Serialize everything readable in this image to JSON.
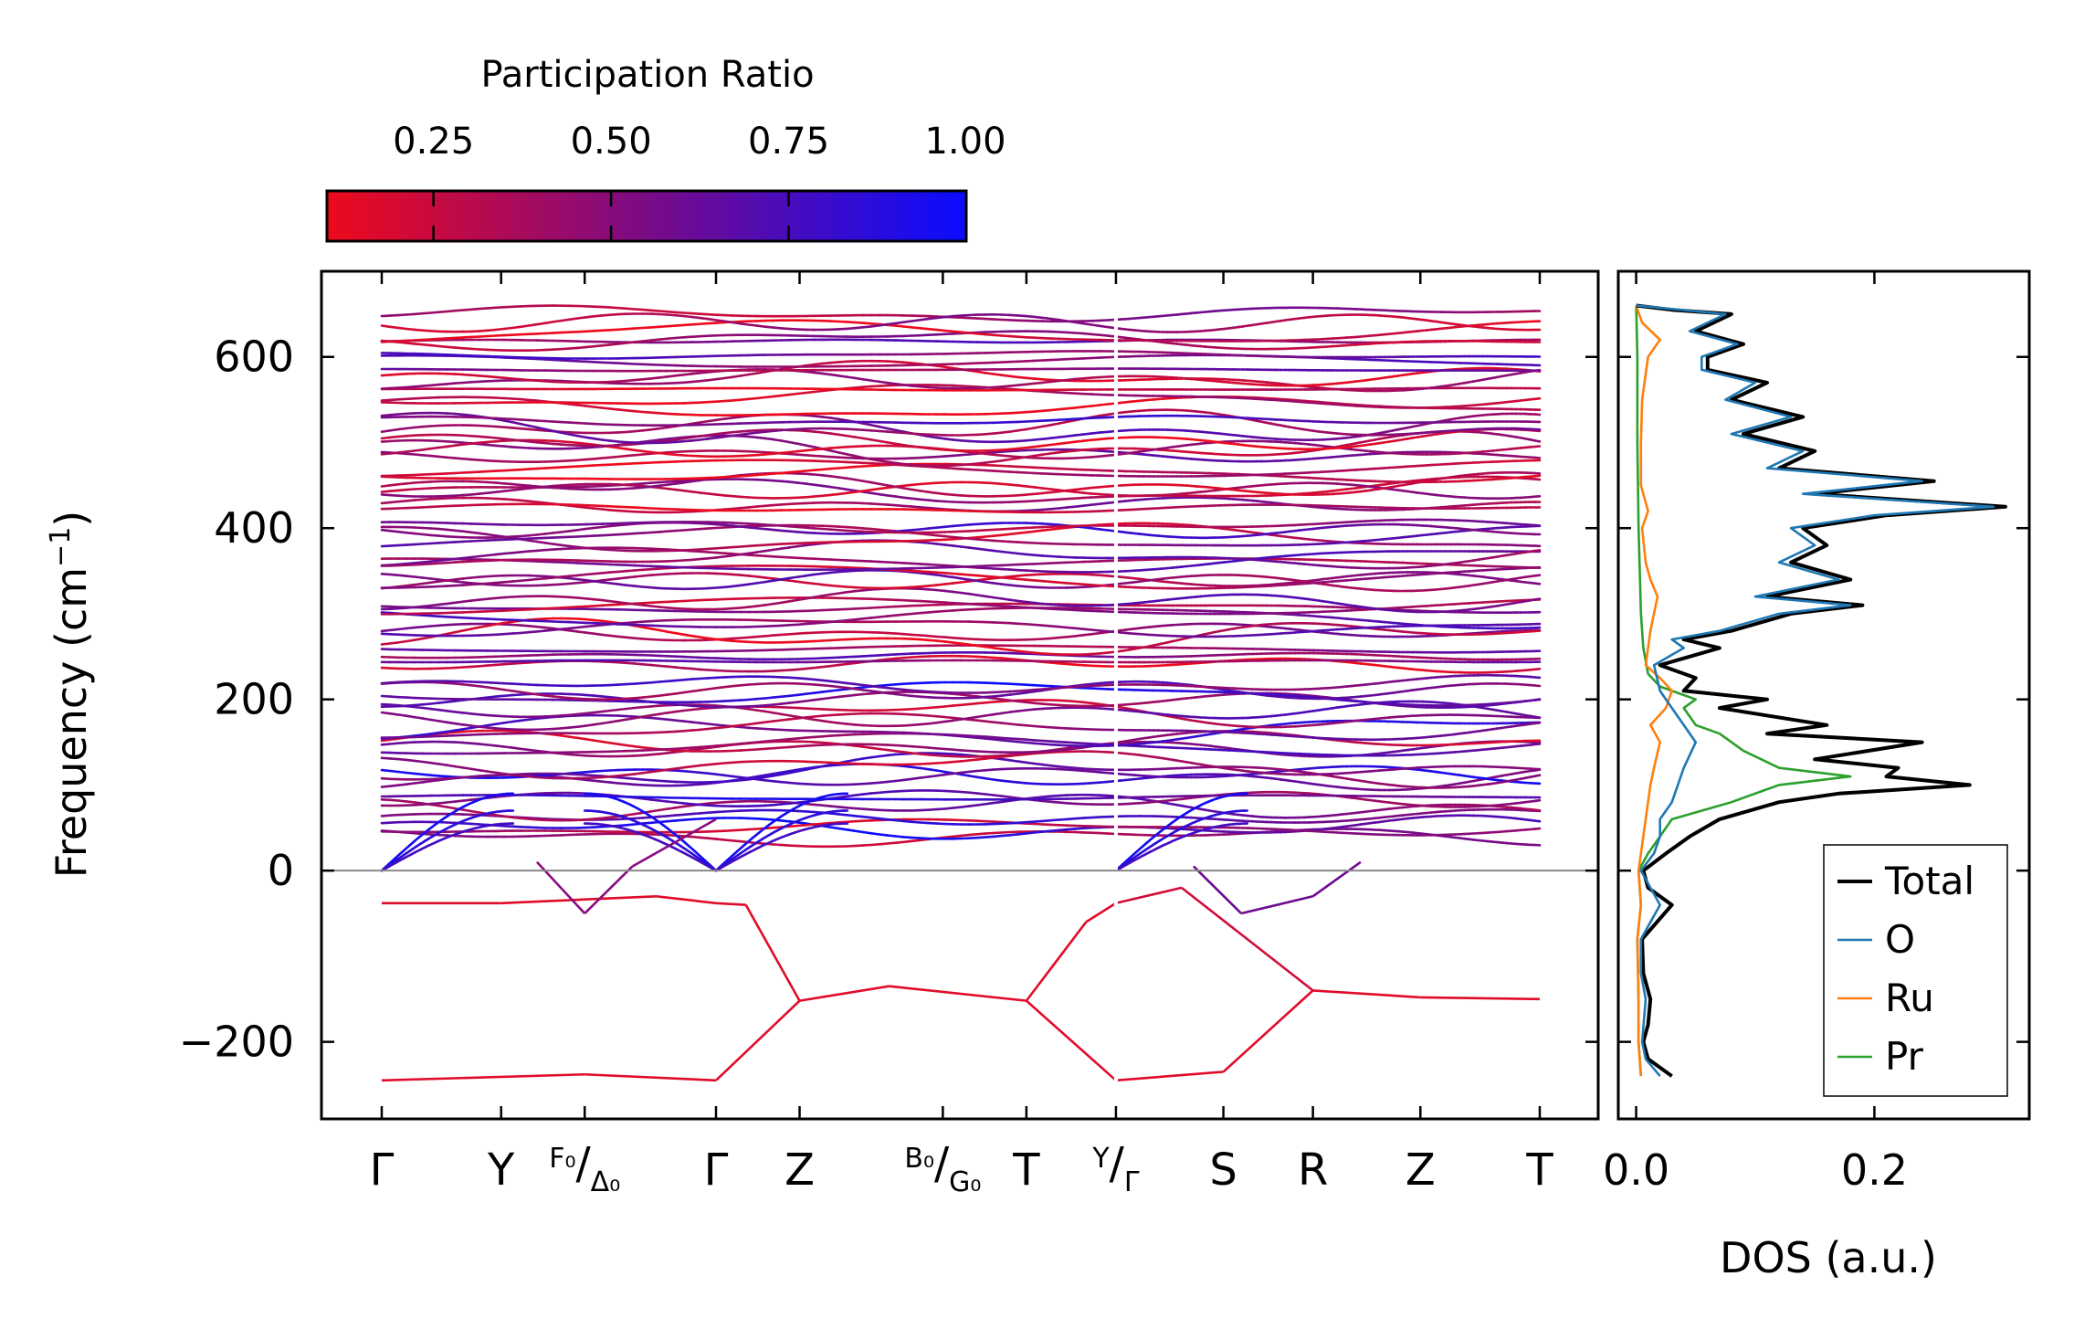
{
  "chart_data": [
    {
      "type": "line",
      "name": "phonon-band-structure",
      "xlabel": "",
      "ylabel": "Frequency (cm⁻¹)",
      "ylabel_main": "Frequency (cm",
      "ylabel_sup": "−1",
      "ylabel_close": ")",
      "ylim": [
        -290,
        700
      ],
      "yticks": [
        -200,
        0,
        200,
        400,
        600
      ],
      "ytick_labels": [
        "−200",
        "0",
        "200",
        "400",
        "600"
      ],
      "kpath": [
        {
          "pos": 0.0,
          "label": "Γ"
        },
        {
          "pos": 1.0,
          "label": "Y"
        },
        {
          "pos": 1.7,
          "label_top": "F₀",
          "label_bottom": "Δ₀"
        },
        {
          "pos": 2.8,
          "label": "Γ"
        },
        {
          "pos": 3.5,
          "label": "Z"
        },
        {
          "pos": 4.7,
          "label_top": "B₀",
          "label_bottom": "G₀"
        },
        {
          "pos": 5.4,
          "label": "T"
        },
        {
          "pos": 6.15,
          "label_top": "Y",
          "label_bottom": "Γ"
        },
        {
          "pos": 7.05,
          "label": "S"
        },
        {
          "pos": 7.8,
          "label": "R"
        },
        {
          "pos": 8.7,
          "label": "Z"
        },
        {
          "pos": 9.7,
          "label": "T"
        }
      ],
      "segment_breaks": [
        6.15
      ],
      "colorbar": {
        "title": "Participation Ratio",
        "range": [
          0.1,
          1.0
        ],
        "ticks": [
          0.25,
          0.5,
          0.75,
          1.0
        ],
        "tick_labels": [
          "0.25",
          "0.50",
          "0.75",
          "1.00"
        ],
        "color_low": "#ee0a1c",
        "color_mid": "#7a0b86",
        "color_high": "#0a0cff"
      },
      "notable_bands": [
        {
          "desc": "top optical band",
          "approx_cm-1": 650
        },
        {
          "desc": "soft mode (lowest)",
          "approx_cm-1": -245
        },
        {
          "desc": "soft mode (second)",
          "approx_cm-1": -150
        },
        {
          "desc": "acoustic branches start at Γ",
          "approx_cm-1": 0
        }
      ]
    },
    {
      "type": "line",
      "name": "density-of-states",
      "xlabel": "DOS (a.u.)",
      "xlim": [
        -0.015,
        0.33
      ],
      "xticks": [
        0.0,
        0.2
      ],
      "xtick_labels": [
        "0.0",
        "0.2"
      ],
      "ylim": [
        -290,
        700
      ],
      "legend_position": "lower-right",
      "series": [
        {
          "name": "Total",
          "color": "#000000",
          "points": [
            [
              -240,
              0.03
            ],
            [
              -220,
              0.01
            ],
            [
              -200,
              0.006
            ],
            [
              -180,
              0.01
            ],
            [
              -150,
              0.012
            ],
            [
              -120,
              0.006
            ],
            [
              -80,
              0.005
            ],
            [
              -40,
              0.03
            ],
            [
              -20,
              0.01
            ],
            [
              0,
              0.006
            ],
            [
              20,
              0.025
            ],
            [
              40,
              0.045
            ],
            [
              60,
              0.07
            ],
            [
              80,
              0.12
            ],
            [
              90,
              0.17
            ],
            [
              100,
              0.28
            ],
            [
              110,
              0.21
            ],
            [
              120,
              0.22
            ],
            [
              130,
              0.15
            ],
            [
              150,
              0.24
            ],
            [
              160,
              0.11
            ],
            [
              170,
              0.16
            ],
            [
              190,
              0.07
            ],
            [
              200,
              0.11
            ],
            [
              210,
              0.04
            ],
            [
              225,
              0.05
            ],
            [
              240,
              0.02
            ],
            [
              260,
              0.07
            ],
            [
              270,
              0.04
            ],
            [
              280,
              0.08
            ],
            [
              300,
              0.13
            ],
            [
              310,
              0.19
            ],
            [
              320,
              0.11
            ],
            [
              340,
              0.18
            ],
            [
              360,
              0.13
            ],
            [
              380,
              0.16
            ],
            [
              400,
              0.14
            ],
            [
              415,
              0.21
            ],
            [
              425,
              0.31
            ],
            [
              440,
              0.15
            ],
            [
              455,
              0.25
            ],
            [
              470,
              0.12
            ],
            [
              490,
              0.15
            ],
            [
              510,
              0.09
            ],
            [
              530,
              0.14
            ],
            [
              550,
              0.08
            ],
            [
              570,
              0.11
            ],
            [
              585,
              0.06
            ],
            [
              600,
              0.06
            ],
            [
              615,
              0.09
            ],
            [
              630,
              0.05
            ],
            [
              650,
              0.08
            ],
            [
              655,
              0.03
            ],
            [
              660,
              0.0
            ]
          ]
        },
        {
          "name": "O",
          "color": "#1f77b4",
          "points": [
            [
              -240,
              0.02
            ],
            [
              -220,
              0.008
            ],
            [
              -200,
              0.005
            ],
            [
              -150,
              0.008
            ],
            [
              -120,
              0.004
            ],
            [
              -80,
              0.004
            ],
            [
              -40,
              0.02
            ],
            [
              0,
              0.004
            ],
            [
              20,
              0.015
            ],
            [
              40,
              0.02
            ],
            [
              60,
              0.02
            ],
            [
              80,
              0.03
            ],
            [
              100,
              0.035
            ],
            [
              120,
              0.04
            ],
            [
              150,
              0.05
            ],
            [
              170,
              0.04
            ],
            [
              190,
              0.03
            ],
            [
              210,
              0.02
            ],
            [
              240,
              0.015
            ],
            [
              260,
              0.04
            ],
            [
              270,
              0.03
            ],
            [
              280,
              0.07
            ],
            [
              300,
              0.12
            ],
            [
              310,
              0.18
            ],
            [
              320,
              0.1
            ],
            [
              340,
              0.17
            ],
            [
              360,
              0.12
            ],
            [
              380,
              0.15
            ],
            [
              400,
              0.13
            ],
            [
              415,
              0.2
            ],
            [
              425,
              0.3
            ],
            [
              440,
              0.14
            ],
            [
              455,
              0.24
            ],
            [
              470,
              0.11
            ],
            [
              490,
              0.14
            ],
            [
              510,
              0.08
            ],
            [
              530,
              0.13
            ],
            [
              550,
              0.075
            ],
            [
              570,
              0.1
            ],
            [
              585,
              0.055
            ],
            [
              600,
              0.055
            ],
            [
              615,
              0.085
            ],
            [
              630,
              0.045
            ],
            [
              650,
              0.075
            ],
            [
              660,
              0.0
            ]
          ]
        },
        {
          "name": "Ru",
          "color": "#ff7f0e",
          "points": [
            [
              -240,
              0.004
            ],
            [
              -200,
              0.002
            ],
            [
              -150,
              0.002
            ],
            [
              -80,
              0.001
            ],
            [
              -40,
              0.004
            ],
            [
              0,
              0.002
            ],
            [
              40,
              0.006
            ],
            [
              80,
              0.01
            ],
            [
              100,
              0.012
            ],
            [
              120,
              0.015
            ],
            [
              150,
              0.02
            ],
            [
              170,
              0.012
            ],
            [
              190,
              0.025
            ],
            [
              210,
              0.03
            ],
            [
              225,
              0.02
            ],
            [
              240,
              0.008
            ],
            [
              260,
              0.01
            ],
            [
              280,
              0.012
            ],
            [
              300,
              0.015
            ],
            [
              320,
              0.018
            ],
            [
              340,
              0.012
            ],
            [
              360,
              0.008
            ],
            [
              400,
              0.005
            ],
            [
              420,
              0.01
            ],
            [
              450,
              0.004
            ],
            [
              500,
              0.004
            ],
            [
              550,
              0.005
            ],
            [
              600,
              0.01
            ],
            [
              620,
              0.02
            ],
            [
              640,
              0.005
            ],
            [
              660,
              0.0
            ]
          ]
        },
        {
          "name": "Pr",
          "color": "#2ca02c",
          "points": [
            [
              -240,
              0.004
            ],
            [
              -200,
              0.002
            ],
            [
              -150,
              0.002
            ],
            [
              -80,
              0.001
            ],
            [
              -40,
              0.004
            ],
            [
              0,
              0.002
            ],
            [
              20,
              0.01
            ],
            [
              40,
              0.02
            ],
            [
              60,
              0.03
            ],
            [
              80,
              0.08
            ],
            [
              100,
              0.12
            ],
            [
              110,
              0.18
            ],
            [
              120,
              0.12
            ],
            [
              140,
              0.09
            ],
            [
              160,
              0.07
            ],
            [
              170,
              0.05
            ],
            [
              190,
              0.04
            ],
            [
              200,
              0.05
            ],
            [
              215,
              0.02
            ],
            [
              230,
              0.01
            ],
            [
              260,
              0.006
            ],
            [
              300,
              0.004
            ],
            [
              400,
              0.002
            ],
            [
              500,
              0.001
            ],
            [
              600,
              0.001
            ],
            [
              660,
              0.0
            ]
          ]
        }
      ]
    }
  ]
}
